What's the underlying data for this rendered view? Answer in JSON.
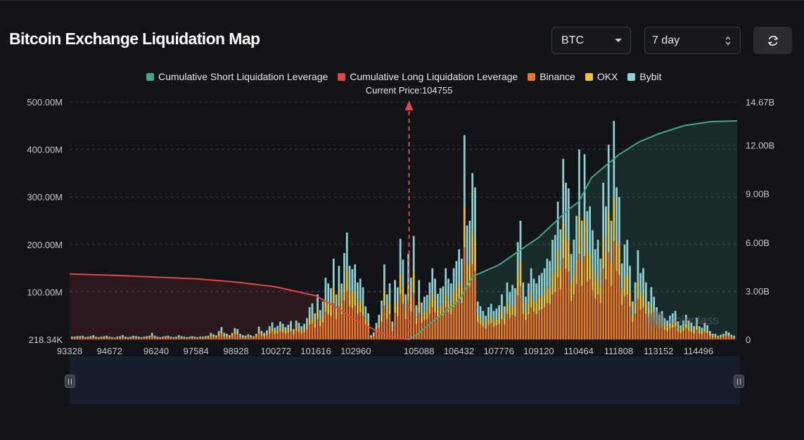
{
  "header": {
    "title": "Bitcoin Exchange Liquidation Map",
    "symbol_select": "BTC",
    "range_select": "7 day",
    "refresh_icon": "refresh-icon"
  },
  "colors": {
    "short_cum": "#3fa88c",
    "long_cum": "#e04848",
    "binance": "#e8772a",
    "okx": "#efc03a",
    "bybit": "#8fd0d4",
    "bg": "#121317"
  },
  "legend": [
    {
      "label": "Cumulative Short Liquidation Leverage",
      "color": "#3fa88c"
    },
    {
      "label": "Cumulative Long Liquidation Leverage",
      "color": "#e04848"
    },
    {
      "label": "Binance",
      "color": "#e8772a"
    },
    {
      "label": "OKX",
      "color": "#efc03a"
    },
    {
      "label": "Bybit",
      "color": "#8fd0d4"
    }
  ],
  "watermark": "coinglass",
  "chart_data": {
    "type": "bar",
    "current_price_label": "Current Price:104755",
    "current_price": 104755,
    "x_range": [
      93328,
      115800
    ],
    "x_ticks": [
      "93328",
      "94672",
      "96240",
      "97584",
      "98928",
      "100272",
      "101616",
      "102960",
      "105088",
      "106432",
      "107776",
      "109120",
      "110464",
      "111808",
      "113152",
      "114496"
    ],
    "y_left": {
      "ticks": [
        "218.34K",
        "100.00M",
        "200.00M",
        "300.00M",
        "400.00M",
        "500.00M"
      ],
      "range": [
        0,
        500
      ],
      "unit": "M"
    },
    "y_right": {
      "ticks": [
        "0",
        "3.00B",
        "6.00B",
        "9.00B",
        "12.00B",
        "14.67B"
      ],
      "range": [
        0,
        14.67
      ],
      "unit": "B"
    },
    "grid": true,
    "legend_position": "top-center",
    "bars_total_M": [
      6,
      6,
      7,
      7,
      8,
      5,
      6,
      7,
      9,
      6,
      5,
      6,
      7,
      8,
      6,
      5,
      4,
      6,
      7,
      9,
      6,
      5,
      6,
      8,
      7,
      6,
      5,
      6,
      7,
      8,
      14,
      8,
      6,
      5,
      6,
      7,
      8,
      6,
      5,
      6,
      9,
      7,
      6,
      5,
      6,
      7,
      6,
      5,
      6,
      6,
      7,
      8,
      14,
      11,
      9,
      18,
      26,
      14,
      12,
      9,
      14,
      24,
      22,
      12,
      9,
      8,
      11,
      9,
      7,
      12,
      27,
      18,
      14,
      19,
      28,
      36,
      25,
      29,
      38,
      33,
      26,
      31,
      39,
      22,
      40,
      35,
      28,
      33,
      45,
      68,
      76,
      55,
      95,
      62,
      80,
      130,
      118,
      108,
      170,
      95,
      155,
      118,
      182,
      225,
      155,
      148,
      158,
      120,
      128,
      110,
      70,
      55,
      9,
      15,
      35,
      52,
      82,
      158,
      95,
      118,
      38,
      125,
      110,
      212,
      168,
      95,
      180,
      130,
      218,
      72,
      125,
      78,
      90,
      94,
      120,
      150,
      128,
      96,
      108,
      112,
      150,
      128,
      118,
      150,
      165,
      190,
      170,
      430,
      240,
      250,
      350,
      320,
      80,
      70,
      60,
      50,
      68,
      75,
      60,
      65,
      72,
      95,
      70,
      120,
      100,
      115,
      108,
      205,
      250,
      120,
      90,
      118,
      150,
      128,
      118,
      135,
      140,
      150,
      170,
      165,
      210,
      220,
      290,
      232,
      380,
      330,
      318,
      180,
      210,
      260,
      400,
      250,
      390,
      270,
      280,
      230,
      190,
      210,
      170,
      330,
      280,
      410,
      250,
      460,
      320,
      300,
      160,
      200,
      210,
      155,
      80,
      120,
      188,
      140,
      150,
      120,
      80,
      110,
      90,
      68,
      52,
      60,
      45,
      40,
      50,
      55,
      60,
      38,
      30,
      40,
      52,
      40,
      35,
      28,
      46,
      28,
      25,
      35,
      30,
      18,
      12,
      12,
      8,
      10,
      12,
      18,
      15,
      10,
      8
    ],
    "long_cumulative_B": [
      {
        "x": 93328,
        "y": 4.05
      },
      {
        "x": 95000,
        "y": 3.95
      },
      {
        "x": 96240,
        "y": 3.85
      },
      {
        "x": 97584,
        "y": 3.75
      },
      {
        "x": 98928,
        "y": 3.55
      },
      {
        "x": 100272,
        "y": 3.25
      },
      {
        "x": 101000,
        "y": 2.95
      },
      {
        "x": 101616,
        "y": 2.7
      },
      {
        "x": 102300,
        "y": 2.0
      },
      {
        "x": 102960,
        "y": 1.2
      },
      {
        "x": 103700,
        "y": 0.5
      },
      {
        "x": 104300,
        "y": 0.1
      },
      {
        "x": 104755,
        "y": 0
      }
    ],
    "short_cumulative_B": [
      {
        "x": 104755,
        "y": 0
      },
      {
        "x": 105088,
        "y": 0.4
      },
      {
        "x": 105600,
        "y": 1.2
      },
      {
        "x": 106432,
        "y": 2.4
      },
      {
        "x": 106900,
        "y": 3.9
      },
      {
        "x": 107776,
        "y": 4.6
      },
      {
        "x": 108400,
        "y": 5.4
      },
      {
        "x": 109120,
        "y": 6.3
      },
      {
        "x": 109700,
        "y": 7.3
      },
      {
        "x": 110100,
        "y": 8.0
      },
      {
        "x": 110464,
        "y": 8.5
      },
      {
        "x": 110900,
        "y": 10.0
      },
      {
        "x": 111808,
        "y": 11.4
      },
      {
        "x": 112500,
        "y": 12.2
      },
      {
        "x": 113152,
        "y": 12.7
      },
      {
        "x": 114000,
        "y": 13.2
      },
      {
        "x": 114900,
        "y": 13.45
      },
      {
        "x": 115800,
        "y": 13.5
      }
    ]
  }
}
